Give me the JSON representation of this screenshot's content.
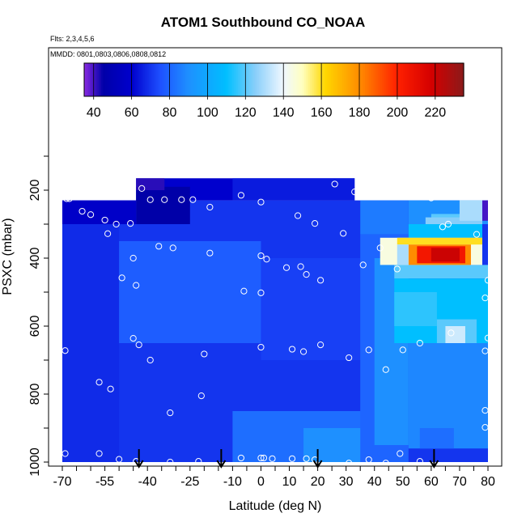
{
  "chart_data": {
    "type": "heatmap",
    "title": "ATOM1 Southbound CO_NOAA",
    "annotations": [
      "Flts: 2,3,4,5,6",
      "MMDD: 0801,0803,0806,0808,0812"
    ],
    "xlabel": "Latitude (deg N)",
    "ylabel": "PSXC (mbar)",
    "xlim": [
      -70,
      83
    ],
    "ylim": [
      1000,
      0
    ],
    "x_ticks": [
      -70,
      -55,
      -40,
      -25,
      -10,
      0,
      10,
      20,
      30,
      40,
      50,
      60,
      70,
      80
    ],
    "x_tick_labels": [
      "-70",
      "-55",
      "-40",
      "-25",
      "-10",
      "0",
      "10",
      "20",
      "30",
      "40",
      "50",
      "60",
      "70",
      "80"
    ],
    "y_ticks": [
      200,
      400,
      600,
      800,
      1000
    ],
    "y_tick_labels": [
      "200",
      "400",
      "600",
      "800",
      "1000"
    ],
    "colorbar": {
      "min": 35,
      "max": 235,
      "ticks": [
        40,
        60,
        80,
        100,
        120,
        140,
        160,
        180,
        200,
        220
      ],
      "tick_labels": [
        "40",
        "60",
        "80",
        "100",
        "120",
        "140",
        "160",
        "180",
        "200",
        "220"
      ],
      "stops": [
        {
          "value": 35,
          "color": "#8a2be2"
        },
        {
          "value": 45,
          "color": "#0000a8"
        },
        {
          "value": 60,
          "color": "#0000cd"
        },
        {
          "value": 75,
          "color": "#1e50ff"
        },
        {
          "value": 90,
          "color": "#1e90ff"
        },
        {
          "value": 110,
          "color": "#00bfff"
        },
        {
          "value": 125,
          "color": "#87cefa"
        },
        {
          "value": 140,
          "color": "#f0f8ff"
        },
        {
          "value": 150,
          "color": "#ffffc0"
        },
        {
          "value": 162,
          "color": "#ffd700"
        },
        {
          "value": 180,
          "color": "#ff8c00"
        },
        {
          "value": 200,
          "color": "#ff2000"
        },
        {
          "value": 218,
          "color": "#d40000"
        },
        {
          "value": 235,
          "color": "#8b1a1a"
        }
      ]
    },
    "regions": [
      {
        "lat": [
          -70,
          80
        ],
        "p": [
          230,
          1000
        ],
        "value": 70
      },
      {
        "lat": [
          -44,
          33
        ],
        "p": [
          165,
          230
        ],
        "value": 60
      },
      {
        "lat": [
          -44,
          -25
        ],
        "p": [
          190,
          300
        ],
        "value": 45
      },
      {
        "lat": [
          -44,
          -34
        ],
        "p": [
          165,
          200
        ],
        "value": 42
      },
      {
        "lat": [
          -10,
          33
        ],
        "p": [
          165,
          230
        ],
        "value": 65
      },
      {
        "lat": [
          -70,
          -44
        ],
        "p": [
          230,
          300
        ],
        "value": 58
      },
      {
        "lat": [
          -70,
          -50
        ],
        "p": [
          300,
          1000
        ],
        "value": 68
      },
      {
        "lat": [
          -50,
          0
        ],
        "p": [
          350,
          650
        ],
        "value": 78
      },
      {
        "lat": [
          0,
          40
        ],
        "p": [
          400,
          700
        ],
        "value": 72
      },
      {
        "lat": [
          -10,
          40
        ],
        "p": [
          850,
          1000
        ],
        "value": 82
      },
      {
        "lat": [
          15,
          40
        ],
        "p": [
          900,
          1000
        ],
        "value": 90
      },
      {
        "lat": [
          35,
          52
        ],
        "p": [
          230,
          330
        ],
        "value": 85
      },
      {
        "lat": [
          35,
          52
        ],
        "p": [
          330,
          1000
        ],
        "value": 80
      },
      {
        "lat": [
          40,
          52
        ],
        "p": [
          400,
          950
        ],
        "value": 90
      },
      {
        "lat": [
          52,
          80
        ],
        "p": [
          650,
          960
        ],
        "value": 88
      },
      {
        "lat": [
          52,
          80
        ],
        "p": [
          230,
          300
        ],
        "value": 90
      },
      {
        "lat": [
          52,
          78
        ],
        "p": [
          300,
          340
        ],
        "value": 110
      },
      {
        "lat": [
          60,
          78
        ],
        "p": [
          270,
          300
        ],
        "value": 120
      },
      {
        "lat": [
          58,
          78
        ],
        "p": [
          280,
          300
        ],
        "value": 125
      },
      {
        "lat": [
          70,
          78
        ],
        "p": [
          230,
          290
        ],
        "value": 130
      },
      {
        "lat": [
          78,
          80
        ],
        "p": [
          230,
          290
        ],
        "value": 40
      },
      {
        "lat": [
          47,
          80
        ],
        "p": [
          420,
          460
        ],
        "value": 120
      },
      {
        "lat": [
          47,
          80
        ],
        "p": [
          460,
          650
        ],
        "value": 110
      },
      {
        "lat": [
          47,
          62
        ],
        "p": [
          500,
          600
        ],
        "value": 115
      },
      {
        "lat": [
          62,
          76
        ],
        "p": [
          580,
          650
        ],
        "value": 120
      },
      {
        "lat": [
          65,
          72
        ],
        "p": [
          600,
          650
        ],
        "value": 135
      },
      {
        "lat": [
          42,
          78
        ],
        "p": [
          340,
          420
        ],
        "value": 145
      },
      {
        "lat": [
          48,
          78
        ],
        "p": [
          340,
          360
        ],
        "value": 160
      },
      {
        "lat": [
          52,
          74
        ],
        "p": [
          360,
          420
        ],
        "value": 180
      },
      {
        "lat": [
          55,
          72
        ],
        "p": [
          365,
          415
        ],
        "value": 205
      },
      {
        "lat": [
          60,
          70
        ],
        "p": [
          370,
          410
        ],
        "value": 220
      },
      {
        "lat": [
          48,
          52
        ],
        "p": [
          360,
          420
        ],
        "value": 130
      },
      {
        "lat": [
          56,
          68
        ],
        "p": [
          900,
          960
        ],
        "value": 82
      }
    ],
    "sample_points": [
      {
        "lat": -68.5,
        "p": 225
      },
      {
        "lat": -67.5,
        "p": 225
      },
      {
        "lat": -63,
        "p": 262
      },
      {
        "lat": -60,
        "p": 272
      },
      {
        "lat": -55,
        "p": 288
      },
      {
        "lat": -51,
        "p": 300
      },
      {
        "lat": -54,
        "p": 328
      },
      {
        "lat": -46,
        "p": 298
      },
      {
        "lat": -42,
        "p": 195
      },
      {
        "lat": -39,
        "p": 228
      },
      {
        "lat": -34,
        "p": 228
      },
      {
        "lat": -28,
        "p": 228
      },
      {
        "lat": -24,
        "p": 228
      },
      {
        "lat": -18,
        "p": 250
      },
      {
        "lat": -7,
        "p": 215
      },
      {
        "lat": 0,
        "p": 235
      },
      {
        "lat": 13,
        "p": 275
      },
      {
        "lat": 19,
        "p": 298
      },
      {
        "lat": 26,
        "p": 182
      },
      {
        "lat": 33,
        "p": 205
      },
      {
        "lat": 29,
        "p": 327
      },
      {
        "lat": 42,
        "p": 370
      },
      {
        "lat": 60,
        "p": 223
      },
      {
        "lat": 66,
        "p": 300
      },
      {
        "lat": 64,
        "p": 308
      },
      {
        "lat": 76,
        "p": 330
      },
      {
        "lat": -36,
        "p": 365
      },
      {
        "lat": -31,
        "p": 370
      },
      {
        "lat": -18,
        "p": 385
      },
      {
        "lat": -45,
        "p": 400
      },
      {
        "lat": -49,
        "p": 458
      },
      {
        "lat": -44,
        "p": 480
      },
      {
        "lat": 0,
        "p": 393
      },
      {
        "lat": 2,
        "p": 403
      },
      {
        "lat": 9,
        "p": 428
      },
      {
        "lat": 14,
        "p": 425
      },
      {
        "lat": 16,
        "p": 448
      },
      {
        "lat": 21,
        "p": 465
      },
      {
        "lat": 36,
        "p": 420
      },
      {
        "lat": 48,
        "p": 432
      },
      {
        "lat": 80,
        "p": 465
      },
      {
        "lat": -6,
        "p": 497
      },
      {
        "lat": 0,
        "p": 502
      },
      {
        "lat": 79,
        "p": 517
      },
      {
        "lat": -45,
        "p": 636
      },
      {
        "lat": -43,
        "p": 655
      },
      {
        "lat": -69,
        "p": 672
      },
      {
        "lat": -39,
        "p": 700
      },
      {
        "lat": -20,
        "p": 682
      },
      {
        "lat": 0,
        "p": 662
      },
      {
        "lat": 11,
        "p": 668
      },
      {
        "lat": 15,
        "p": 675
      },
      {
        "lat": 21,
        "p": 655
      },
      {
        "lat": 31,
        "p": 693
      },
      {
        "lat": 38,
        "p": 670
      },
      {
        "lat": 50,
        "p": 670
      },
      {
        "lat": 56,
        "p": 650
      },
      {
        "lat": 67,
        "p": 620
      },
      {
        "lat": 80,
        "p": 635
      },
      {
        "lat": 79,
        "p": 673
      },
      {
        "lat": -57,
        "p": 765
      },
      {
        "lat": -53,
        "p": 785
      },
      {
        "lat": -21,
        "p": 805
      },
      {
        "lat": 44,
        "p": 728
      },
      {
        "lat": -32,
        "p": 855
      },
      {
        "lat": 79,
        "p": 848
      },
      {
        "lat": 79,
        "p": 898
      },
      {
        "lat": -69,
        "p": 975
      },
      {
        "lat": -57,
        "p": 975
      },
      {
        "lat": -50,
        "p": 992
      },
      {
        "lat": -44,
        "p": 998
      },
      {
        "lat": -32,
        "p": 1000
      },
      {
        "lat": -22,
        "p": 998
      },
      {
        "lat": -7,
        "p": 988
      },
      {
        "lat": 0,
        "p": 988
      },
      {
        "lat": 1,
        "p": 988
      },
      {
        "lat": 4,
        "p": 990
      },
      {
        "lat": 11,
        "p": 990
      },
      {
        "lat": 16,
        "p": 990
      },
      {
        "lat": 19,
        "p": 993
      },
      {
        "lat": 31,
        "p": 1003
      },
      {
        "lat": 38,
        "p": 993
      },
      {
        "lat": 44,
        "p": 1003
      },
      {
        "lat": 49,
        "p": 975
      },
      {
        "lat": 56,
        "p": 998
      }
    ],
    "arrows_lat": [
      -43,
      -14,
      20,
      61
    ]
  }
}
